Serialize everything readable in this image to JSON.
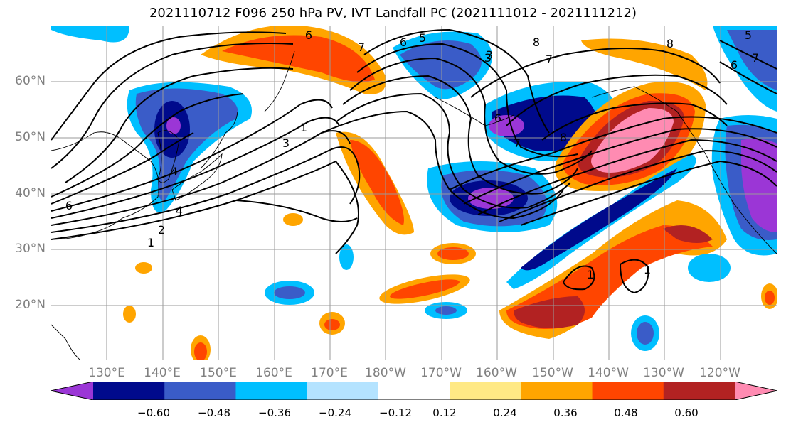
{
  "title": "2021110712 F096 250 hPa PV, IVT Landfall PC (2021111012 - 2021111212)",
  "lat_labels": [
    "60°N",
    "50°N",
    "40°N",
    "30°N",
    "20°N"
  ],
  "lon_labels": [
    "130°E",
    "140°E",
    "150°E",
    "160°E",
    "170°E",
    "180°W",
    "170°W",
    "160°W",
    "150°W",
    "140°W",
    "130°W",
    "120°W"
  ],
  "colorbar": {
    "colors": [
      "#9b36d6",
      "#000a8c",
      "#3a5cc8",
      "#00bfff",
      "#b4e3ff",
      "#ffffff",
      "#ffe985",
      "#ffa500",
      "#ff4500",
      "#b22222",
      "#ff8bb2"
    ],
    "tick_labels": [
      "−0.60",
      "−0.48",
      "−0.36",
      "−0.24",
      "−0.12",
      "0.12",
      "0.24",
      "0.36",
      "0.48",
      "0.60"
    ]
  },
  "contour_labels": [
    "6",
    "7",
    "8",
    "7",
    "6",
    "5",
    "3",
    "1",
    "3",
    "4",
    "1",
    "2",
    "6",
    "1",
    "1",
    "7",
    "8",
    "6",
    "8",
    "7",
    "6",
    "5",
    "4",
    "3"
  ]
}
